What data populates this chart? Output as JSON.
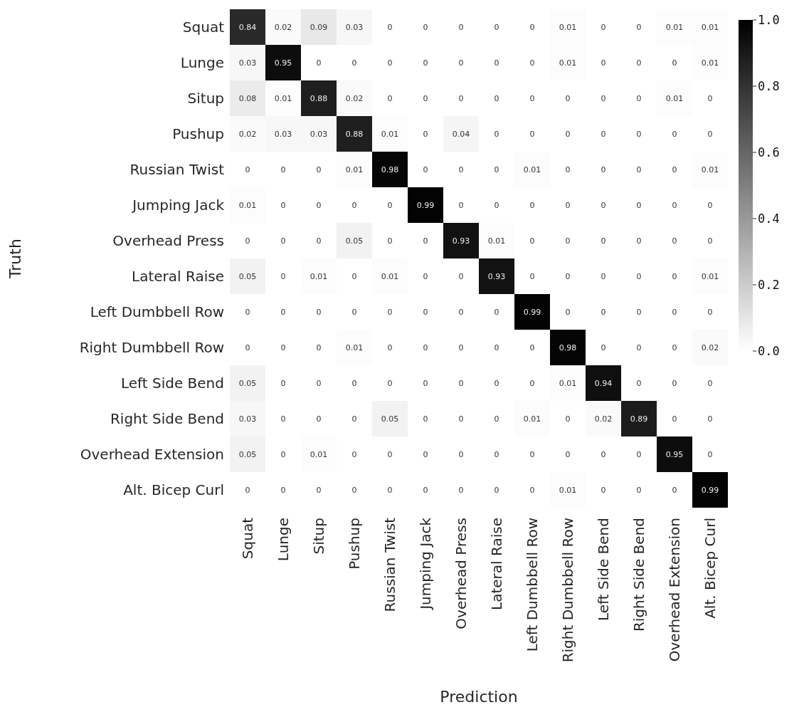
{
  "chart_data": {
    "type": "heatmap",
    "xlabel": "Prediction",
    "ylabel": "Truth",
    "categories": [
      "Squat",
      "Lunge",
      "Situp",
      "Pushup",
      "Russian Twist",
      "Jumping Jack",
      "Overhead Press",
      "Lateral Raise",
      "Left Dumbbell Row",
      "Right Dumbbell Row",
      "Left Side Bend",
      "Right Side Bend",
      "Overhead Extension",
      "Alt. Bicep Curl"
    ],
    "y_categories": [
      "Squat",
      "Lunge",
      "Situp",
      "Pushup",
      "Russian Twist",
      "Jumping Jack",
      "Overhead Press",
      "Lateral Raise",
      "Left Dumbbell Row",
      "Right Dumbbell Row",
      "Left Side Bend",
      "Right Side Bend",
      "Overhead Extension",
      "Alt. Bicep Curl"
    ],
    "cells": [
      [
        0.84,
        0.02,
        0.09,
        0.03,
        0,
        0,
        0,
        0,
        0,
        0.01,
        0,
        0,
        0.01,
        0.01
      ],
      [
        0.03,
        0.95,
        0,
        0,
        0,
        0,
        0,
        0,
        0,
        0.01,
        0,
        0,
        0,
        0.01
      ],
      [
        0.08,
        0.01,
        0.88,
        0.02,
        0,
        0,
        0,
        0,
        0,
        0,
        0,
        0,
        0.01,
        0
      ],
      [
        0.02,
        0.03,
        0.03,
        0.88,
        0.01,
        0,
        0.04,
        0,
        0,
        0,
        0,
        0,
        0,
        0
      ],
      [
        0,
        0,
        0,
        0.01,
        0.98,
        0,
        0,
        0,
        0.01,
        0,
        0,
        0,
        0,
        0.01
      ],
      [
        0.01,
        0,
        0,
        0,
        0,
        0.99,
        0,
        0,
        0,
        0,
        0,
        0,
        0,
        0
      ],
      [
        0,
        0,
        0,
        0.05,
        0,
        0,
        0.93,
        0.01,
        0,
        0,
        0,
        0,
        0,
        0
      ],
      [
        0.05,
        0,
        0.01,
        0,
        0.01,
        0,
        0,
        0.93,
        0,
        0,
        0,
        0,
        0,
        0.01
      ],
      [
        0,
        0,
        0,
        0,
        0,
        0,
        0,
        0,
        0.99,
        0,
        0,
        0,
        0,
        0
      ],
      [
        0,
        0,
        0,
        0.01,
        0,
        0,
        0,
        0,
        0,
        0.98,
        0,
        0,
        0,
        0.02
      ],
      [
        0.05,
        0,
        0,
        0,
        0,
        0,
        0,
        0,
        0,
        0.01,
        0.94,
        0,
        0,
        0
      ],
      [
        0.03,
        0,
        0,
        0,
        0.05,
        0,
        0,
        0,
        0.01,
        0,
        0.02,
        0.89,
        0,
        0
      ],
      [
        0.05,
        0,
        0.01,
        0,
        0,
        0,
        0,
        0,
        0,
        0,
        0,
        0,
        0.95,
        0
      ],
      [
        0,
        0,
        0,
        0,
        0,
        0,
        0,
        0,
        0,
        0.01,
        0,
        0,
        0,
        0.99
      ]
    ],
    "data_labels": true,
    "clim": [
      0,
      1
    ],
    "cticks": [
      {
        "value": 0,
        "label": "0.0"
      },
      {
        "value": 0.2,
        "label": "0.2"
      },
      {
        "value": 0.4,
        "label": "0.4"
      },
      {
        "value": 0.6,
        "label": "0.6"
      },
      {
        "value": 0.8,
        "label": "0.8"
      },
      {
        "value": 1,
        "label": "1.0"
      }
    ]
  }
}
